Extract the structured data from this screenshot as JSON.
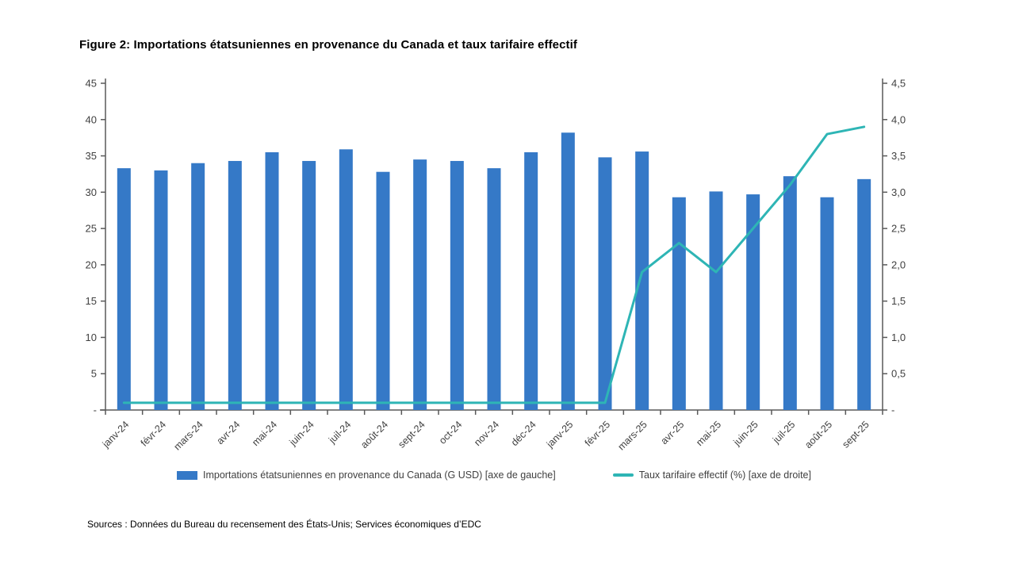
{
  "figure": {
    "title": "Figure 2: Importations étatsuniennes en provenance du Canada et taux tarifaire effectif",
    "sources": "Sources : Données du Bureau du recensement des États-Unis; Services économiques d’EDC"
  },
  "legend": {
    "bars_label": "Importations étatsuniennes en provenance du Canada (G USD) [axe de gauche]",
    "line_label": "Taux tarifaire effectif (%) [axe de droite]"
  },
  "colors": {
    "bar": "#3579C7",
    "line": "#2EB5B5",
    "axis": "#595959",
    "tick_text": "#404040"
  },
  "chart_data": {
    "type": "bar",
    "subtype": "bar-and-line-dual-axis",
    "title": "Figure 2: Importations étatsuniennes en provenance du Canada et taux tarifaire effectif",
    "categories": [
      "janv-24",
      "févr-24",
      "mars-24",
      "avr-24",
      "mai-24",
      "juin-24",
      "juil-24",
      "août-24",
      "sept-24",
      "oct-24",
      "nov-24",
      "déc-24",
      "janv-25",
      "févr-25",
      "mars-25",
      "avr-25",
      "mai-25",
      "juin-25",
      "juil-25",
      "août-25",
      "sept-25"
    ],
    "series": [
      {
        "name": "Importations étatsuniennes en provenance du Canada (G USD) [axe de gauche]",
        "type": "bar",
        "axis": "left",
        "values": [
          33.3,
          33.0,
          34.0,
          34.3,
          35.5,
          34.3,
          35.9,
          32.8,
          34.5,
          34.3,
          33.3,
          35.5,
          38.2,
          34.8,
          35.6,
          29.3,
          30.1,
          29.7,
          32.2,
          29.3,
          31.8
        ]
      },
      {
        "name": "Taux tarifaire effectif (%) [axe de droite]",
        "type": "line",
        "axis": "right",
        "values": [
          0.1,
          0.1,
          0.1,
          0.1,
          0.1,
          0.1,
          0.1,
          0.1,
          0.1,
          0.1,
          0.1,
          0.1,
          0.1,
          0.1,
          1.9,
          2.3,
          1.9,
          2.5,
          3.1,
          3.8,
          3.9
        ]
      }
    ],
    "left_axis": {
      "min": 0,
      "max": 45,
      "step": 5,
      "tick_values": [
        0,
        5,
        10,
        15,
        20,
        25,
        30,
        35,
        40,
        45
      ],
      "tick_labels": [
        "-",
        "5",
        "10",
        "15",
        "20",
        "25",
        "30",
        "35",
        "40",
        "45"
      ]
    },
    "right_axis": {
      "min": 0,
      "max": 4.5,
      "step": 0.5,
      "tick_values": [
        0,
        0.5,
        1.0,
        1.5,
        2.0,
        2.5,
        3.0,
        3.5,
        4.0,
        4.5
      ],
      "tick_labels": [
        "-",
        "0,5",
        "1,0",
        "1,5",
        "2,0",
        "2,5",
        "3,0",
        "3,5",
        "4,0",
        "4,5"
      ]
    },
    "grid": false,
    "legend_position": "bottom-center"
  }
}
